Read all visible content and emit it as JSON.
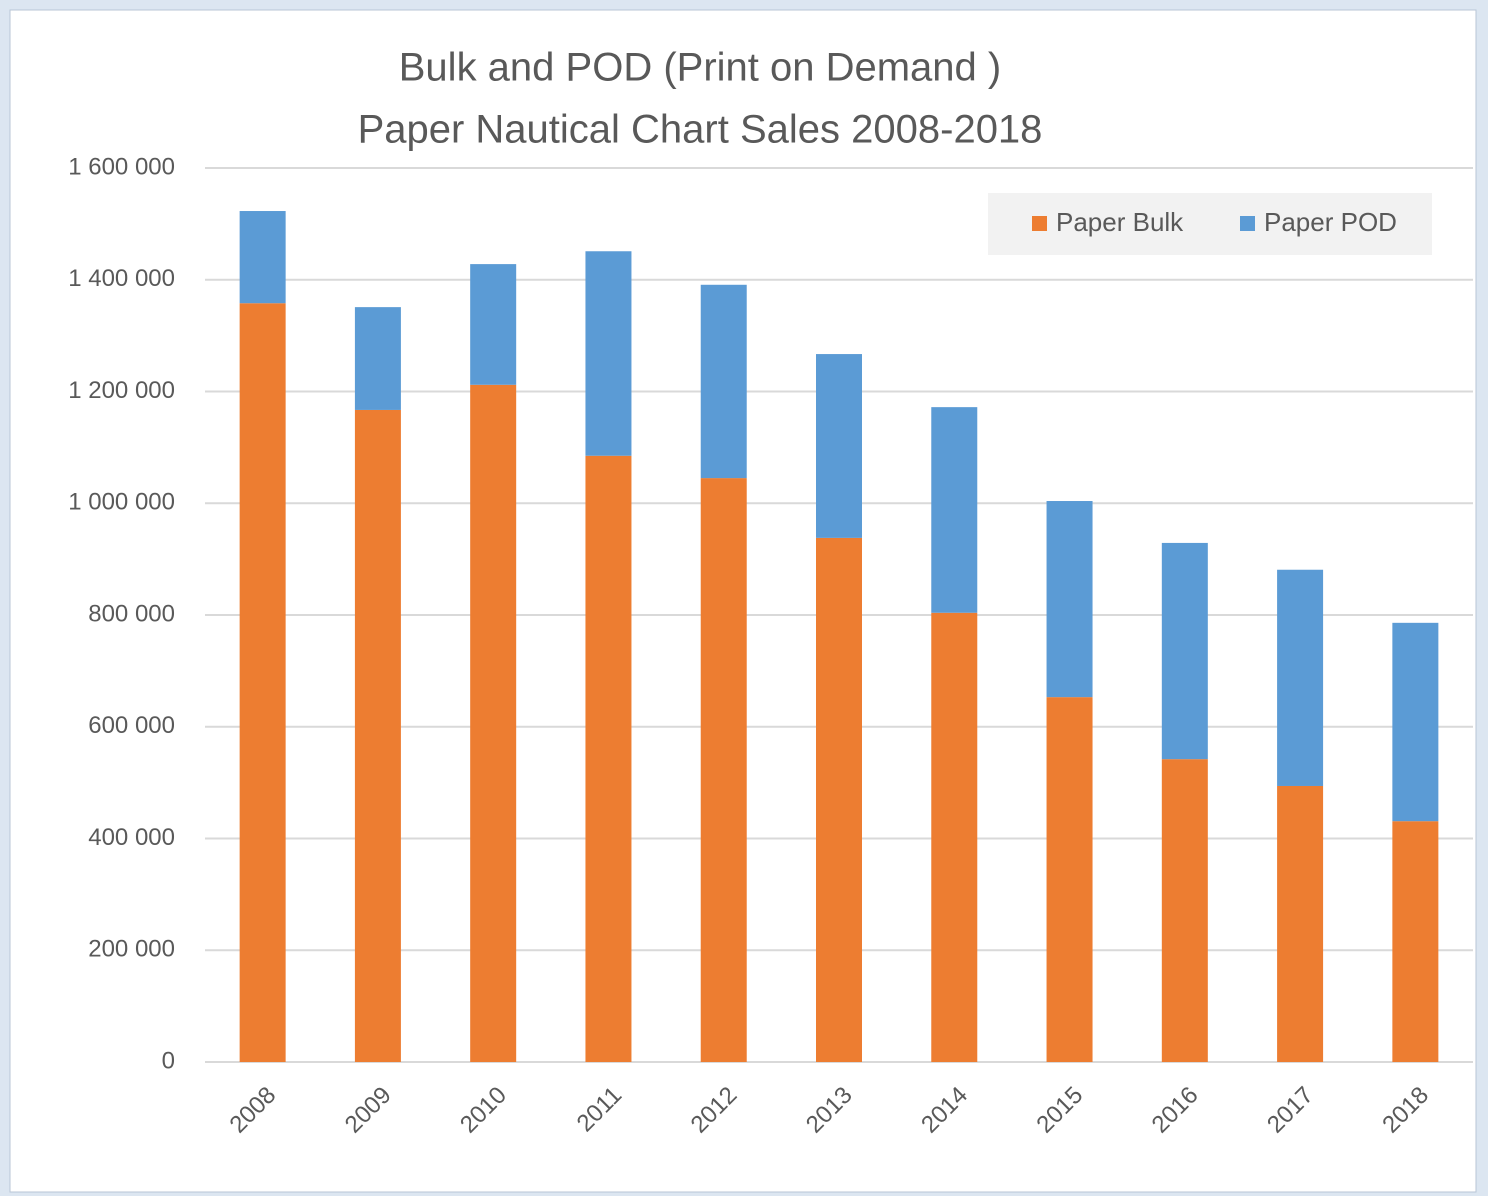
{
  "chart_data": {
    "type": "stacked_bar",
    "title": [
      "Bulk and POD (Print on Demand )",
      "Paper Nautical Chart Sales 2008-2018"
    ],
    "categories": [
      "2008",
      "2009",
      "2010",
      "2011",
      "2012",
      "2013",
      "2014",
      "2015",
      "2016",
      "2017",
      "2018"
    ],
    "series": [
      {
        "name": "Paper Bulk",
        "color": "#ed7d31",
        "values": [
          1358000,
          1167000,
          1212000,
          1085000,
          1045000,
          938000,
          804000,
          653000,
          542000,
          494000,
          431000
        ]
      },
      {
        "name": "Paper POD",
        "color": "#5b9bd5",
        "values": [
          165000,
          184000,
          216000,
          366000,
          346000,
          329000,
          368000,
          351000,
          387000,
          387000,
          355000
        ]
      }
    ],
    "ylim": [
      0,
      1600000
    ],
    "yticks": [
      0,
      {
        "value": 200000,
        "label": "200 000"
      },
      {
        "value": 400000,
        "label": "400 000"
      },
      {
        "value": 600000,
        "label": "600 000"
      },
      {
        "value": 800000,
        "label": "800 000"
      },
      {
        "value": 1000000,
        "label": "1 000 000"
      },
      {
        "value": 1200000,
        "label": "1 200 000"
      },
      {
        "value": 1400000,
        "label": "1 400 000"
      },
      {
        "value": 1600000,
        "label": "1 600 000"
      }
    ],
    "grid": true,
    "legend": "top-right"
  }
}
